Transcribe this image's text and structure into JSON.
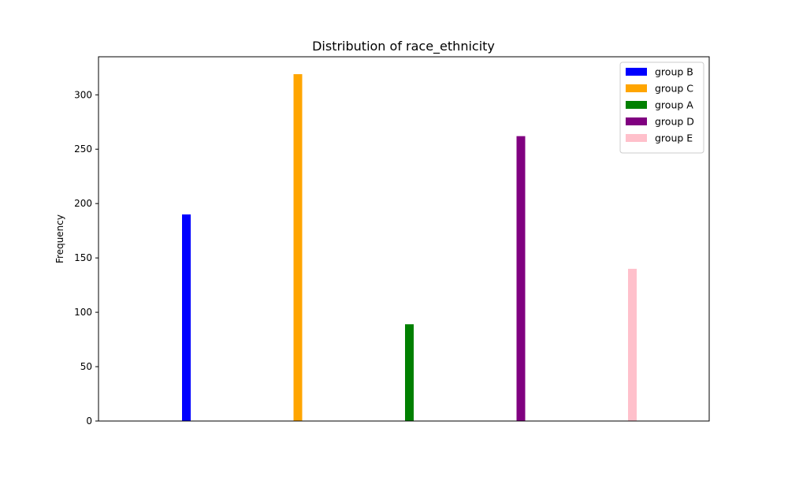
{
  "chart_data": {
    "type": "bar",
    "title": "Distribution of race_ethnicity",
    "xlabel": "",
    "ylabel": "Frequency",
    "ylim": [
      0,
      335
    ],
    "yticks": [
      0,
      50,
      100,
      150,
      200,
      250,
      300
    ],
    "grid": false,
    "legend_position": "top-right",
    "series": [
      {
        "name": "group B",
        "value": 190,
        "color": "#0000ff"
      },
      {
        "name": "group C",
        "value": 319,
        "color": "#ffa500"
      },
      {
        "name": "group A",
        "value": 89,
        "color": "#008000"
      },
      {
        "name": "group D",
        "value": 262,
        "color": "#800080"
      },
      {
        "name": "group E",
        "value": 140,
        "color": "#ffc0cb"
      }
    ]
  }
}
